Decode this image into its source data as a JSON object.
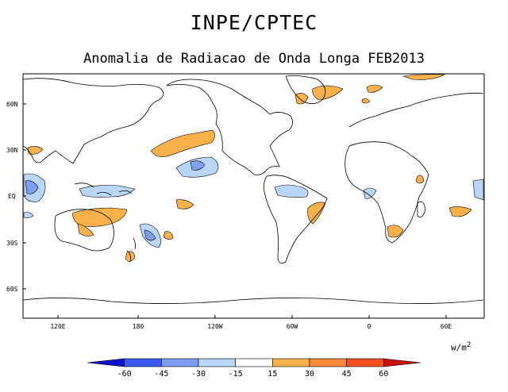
{
  "header": {
    "title": "INPE/CPTEC",
    "subtitle": "Anomalia de Radiacao de Onda Longa FEB2013"
  },
  "map": {
    "lat_ticks": [
      "60N",
      "30N",
      "EQ",
      "30S",
      "60S"
    ],
    "lon_ticks": [
      "120E",
      "180",
      "120W",
      "60W",
      "0",
      "60E"
    ]
  },
  "colorbar": {
    "unit": "w/m",
    "unit_exp": "2",
    "labels": [
      "-60",
      "-45",
      "-30",
      "-15",
      "15",
      "30",
      "45",
      "60"
    ],
    "colors": [
      "#1010d0",
      "#3a5af0",
      "#7c9cf0",
      "#b8d6f8",
      "#ffffff",
      "#fcb24a",
      "#f88a3a",
      "#f25020",
      "#c81010"
    ]
  },
  "palette": {
    "positive": "#fbb14b",
    "negative": "#b9d5f7",
    "negative_strong": "#7f9ff0"
  }
}
